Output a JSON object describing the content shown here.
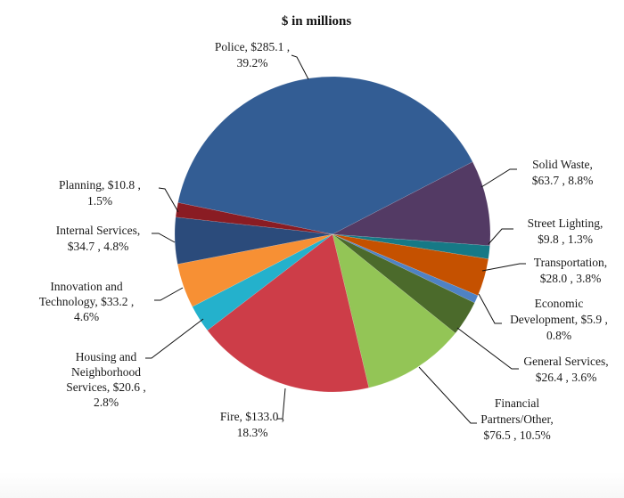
{
  "chart_data": {
    "type": "pie",
    "title": "$ in millions",
    "unit": "$ millions",
    "start_slice": "Police",
    "direction": "clockwise",
    "slices": [
      {
        "name": "Police",
        "value": 285.1,
        "percent": 39.2,
        "color": "#335D94",
        "label_lines": [
          "Police,  $285.1 ,",
          "39.2%"
        ]
      },
      {
        "name": "Solid Waste",
        "value": 63.7,
        "percent": 8.8,
        "color": "#533A64",
        "label_lines": [
          "Solid Waste,",
          "$63.7 , 8.8%"
        ]
      },
      {
        "name": "Street Lighting",
        "value": 9.8,
        "percent": 1.3,
        "color": "#167986",
        "label_lines": [
          "Street Lighting,",
          "$9.8 , 1.3%"
        ]
      },
      {
        "name": "Transportation",
        "value": 28.0,
        "percent": 3.8,
        "color": "#C55100",
        "label_lines": [
          "Transportation,",
          "$28.0 , 3.8%"
        ]
      },
      {
        "name": "Economic Development",
        "value": 5.9,
        "percent": 0.8,
        "color": "#4F82C4",
        "label_lines": [
          "Economic",
          "Development,  $5.9 ,",
          "0.8%"
        ]
      },
      {
        "name": "General Services",
        "value": 26.4,
        "percent": 3.6,
        "color": "#4B6A2B",
        "label_lines": [
          "General Services,",
          "$26.4 , 3.6%"
        ]
      },
      {
        "name": "Financial Partners/Other",
        "value": 76.5,
        "percent": 10.5,
        "color": "#93C556",
        "label_lines": [
          "Financial",
          "Partners/Other,",
          "$76.5 , 10.5%"
        ]
      },
      {
        "name": "Fire",
        "value": 133.0,
        "percent": 18.3,
        "color": "#CD3D48",
        "label_lines": [
          "Fire,  $133.0 ,",
          "18.3%"
        ]
      },
      {
        "name": "Housing and Neighborhood Services",
        "value": 20.6,
        "percent": 2.8,
        "color": "#24B1CC",
        "label_lines": [
          "Housing and",
          "Neighborhood",
          "Services,  $20.6 ,",
          "2.8%"
        ]
      },
      {
        "name": "Innovation and Technology",
        "value": 33.2,
        "percent": 4.6,
        "color": "#F79034",
        "label_lines": [
          "Innovation and",
          "Technology,  $33.2 ,",
          "4.6%"
        ]
      },
      {
        "name": "Internal Services",
        "value": 34.7,
        "percent": 4.8,
        "color": "#2B4B7B",
        "label_lines": [
          "Internal Services,",
          "$34.7 , 4.8%"
        ]
      },
      {
        "name": "Planning",
        "value": 10.8,
        "percent": 1.5,
        "color": "#8A1C23",
        "label_lines": [
          "Planning,  $10.8 ,",
          "1.5%"
        ]
      }
    ],
    "legend": "none",
    "label_style": "outside with leader lines"
  }
}
